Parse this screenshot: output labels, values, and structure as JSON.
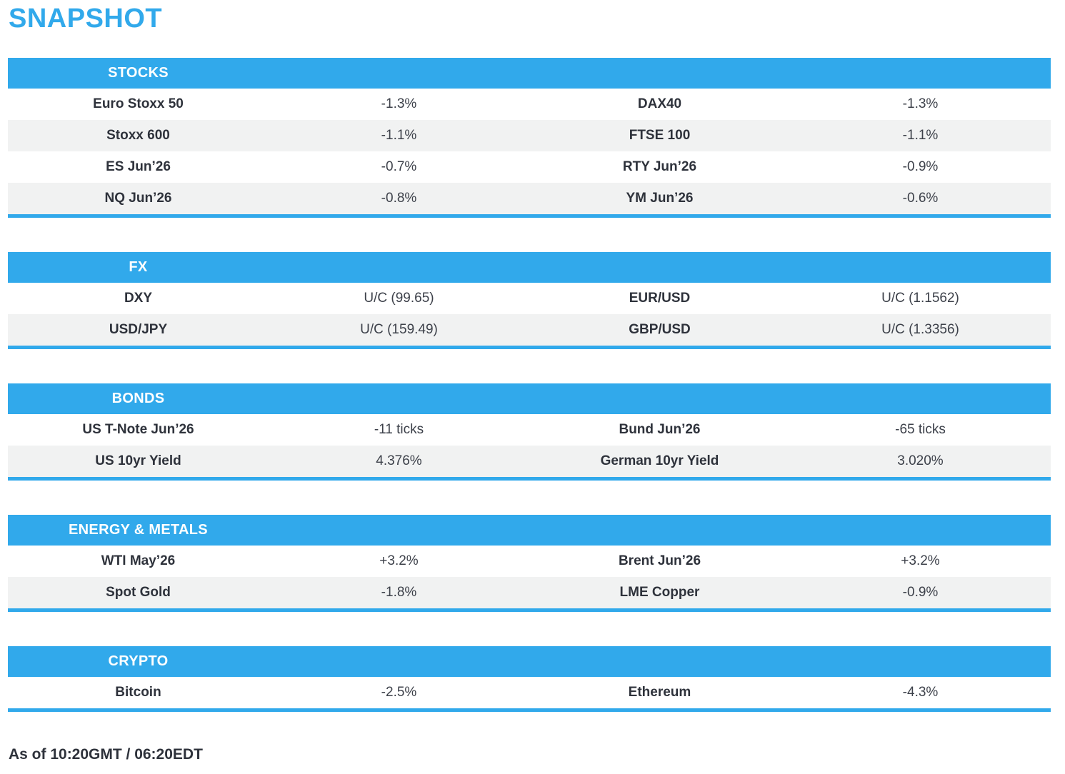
{
  "title": "SNAPSHOT",
  "footer": "As of 10:20GMT / 06:20EDT",
  "colors": {
    "accent": "#31a9eb",
    "row_alt": "#f1f2f2",
    "header_text": "#ffffff"
  },
  "sections": [
    {
      "id": "stocks",
      "title": "STOCKS",
      "rows": [
        [
          "Euro Stoxx 50",
          "-1.3%",
          "DAX40",
          "-1.3%"
        ],
        [
          "Stoxx 600",
          "-1.1%",
          "FTSE 100",
          "-1.1%"
        ],
        [
          "ES Jun’26",
          "-0.7%",
          "RTY Jun’26",
          "-0.9%"
        ],
        [
          "NQ Jun’26",
          "-0.8%",
          "YM Jun’26",
          "-0.6%"
        ]
      ]
    },
    {
      "id": "fx",
      "title": "FX",
      "rows": [
        [
          "DXY",
          "U/C (99.65)",
          "EUR/USD",
          "U/C (1.1562)"
        ],
        [
          "USD/JPY",
          "U/C (159.49)",
          "GBP/USD",
          "U/C (1.3356)"
        ]
      ]
    },
    {
      "id": "bonds",
      "title": "BONDS",
      "rows": [
        [
          "US T-Note Jun’26",
          "-11 ticks",
          "Bund Jun’26",
          "-65 ticks"
        ],
        [
          "US 10yr Yield",
          "4.376%",
          "German 10yr Yield",
          "3.020%"
        ]
      ]
    },
    {
      "id": "energy-metals",
      "title": "ENERGY & METALS",
      "rows": [
        [
          "WTI May’26",
          "+3.2%",
          "Brent Jun’26",
          "+3.2%"
        ],
        [
          "Spot Gold",
          "-1.8%",
          "LME Copper",
          "-0.9%"
        ]
      ]
    },
    {
      "id": "crypto",
      "title": "CRYPTO",
      "rows": [
        [
          "Bitcoin",
          "-2.5%",
          "Ethereum",
          "-4.3%"
        ]
      ]
    }
  ]
}
